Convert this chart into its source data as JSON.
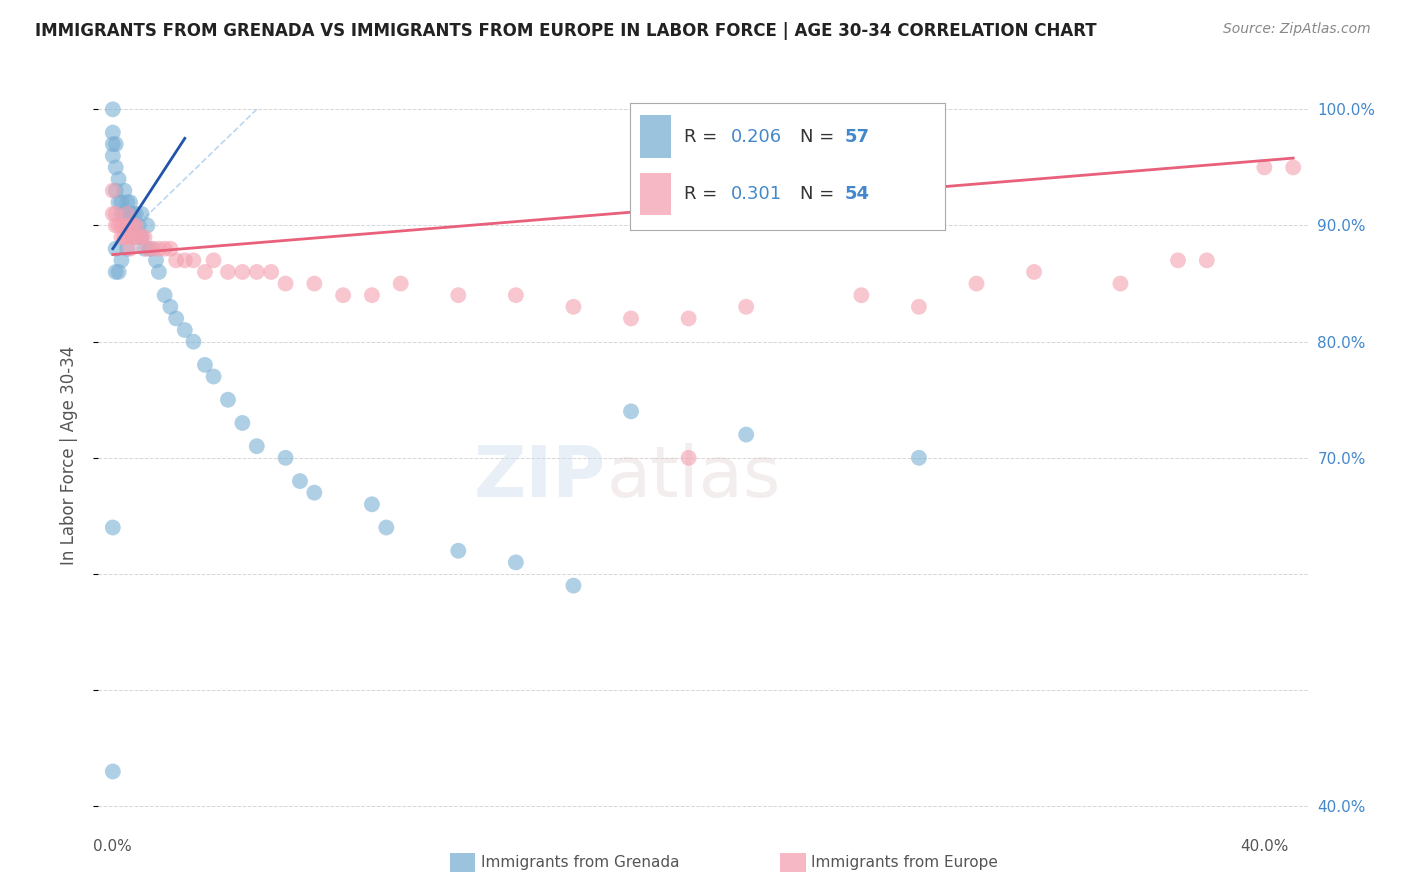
{
  "title": "IMMIGRANTS FROM GRENADA VS IMMIGRANTS FROM EUROPE IN LABOR FORCE | AGE 30-34 CORRELATION CHART",
  "source": "Source: ZipAtlas.com",
  "ylabel": "In Labor Force | Age 30-34",
  "legend_r1": "0.206",
  "legend_n1": "57",
  "legend_r2": "0.301",
  "legend_n2": "54",
  "blue_color": "#7BAFD4",
  "pink_color": "#F4A0B0",
  "blue_line_color": "#2255AA",
  "pink_line_color": "#E8607A",
  "blue_dashed_color": "#AACCEE",
  "axis_label_color": "#4488CC",
  "text_color": "#555555",
  "background_color": "#FFFFFF",
  "blue_scatter_x": [
    0.0,
    0.0,
    0.0,
    0.0,
    0.001,
    0.001,
    0.001,
    0.002,
    0.002,
    0.003,
    0.003,
    0.004,
    0.004,
    0.005,
    0.005,
    0.006,
    0.006,
    0.007,
    0.007,
    0.008,
    0.008,
    0.009,
    0.01,
    0.01,
    0.011,
    0.012,
    0.013,
    0.015,
    0.016,
    0.018,
    0.02,
    0.022,
    0.025,
    0.028,
    0.032,
    0.035,
    0.04,
    0.045,
    0.05,
    0.06,
    0.065,
    0.07,
    0.09,
    0.095,
    0.12,
    0.14,
    0.16,
    0.18,
    0.22,
    0.28,
    0.005,
    0.003,
    0.002,
    0.001,
    0.001,
    0.0,
    0.0
  ],
  "blue_scatter_y": [
    1.0,
    0.98,
    0.97,
    0.96,
    0.97,
    0.95,
    0.93,
    0.94,
    0.92,
    0.92,
    0.91,
    0.93,
    0.91,
    0.92,
    0.9,
    0.92,
    0.91,
    0.91,
    0.9,
    0.91,
    0.89,
    0.9,
    0.91,
    0.89,
    0.88,
    0.9,
    0.88,
    0.87,
    0.86,
    0.84,
    0.83,
    0.82,
    0.81,
    0.8,
    0.78,
    0.77,
    0.75,
    0.73,
    0.71,
    0.7,
    0.68,
    0.67,
    0.66,
    0.64,
    0.62,
    0.61,
    0.59,
    0.74,
    0.72,
    0.7,
    0.88,
    0.87,
    0.86,
    0.88,
    0.86,
    0.64,
    0.43
  ],
  "pink_scatter_x": [
    0.0,
    0.0,
    0.001,
    0.001,
    0.002,
    0.003,
    0.003,
    0.004,
    0.004,
    0.005,
    0.005,
    0.006,
    0.006,
    0.007,
    0.007,
    0.008,
    0.009,
    0.01,
    0.011,
    0.012,
    0.014,
    0.016,
    0.018,
    0.02,
    0.022,
    0.025,
    0.028,
    0.032,
    0.035,
    0.04,
    0.045,
    0.05,
    0.055,
    0.06,
    0.07,
    0.08,
    0.09,
    0.1,
    0.12,
    0.14,
    0.16,
    0.18,
    0.2,
    0.22,
    0.26,
    0.28,
    0.3,
    0.32,
    0.35,
    0.37,
    0.38,
    0.4,
    0.41,
    0.2
  ],
  "pink_scatter_y": [
    0.93,
    0.91,
    0.91,
    0.9,
    0.9,
    0.9,
    0.89,
    0.9,
    0.89,
    0.91,
    0.89,
    0.9,
    0.88,
    0.9,
    0.89,
    0.9,
    0.89,
    0.89,
    0.89,
    0.88,
    0.88,
    0.88,
    0.88,
    0.88,
    0.87,
    0.87,
    0.87,
    0.86,
    0.87,
    0.86,
    0.86,
    0.86,
    0.86,
    0.85,
    0.85,
    0.84,
    0.84,
    0.85,
    0.84,
    0.84,
    0.83,
    0.82,
    0.82,
    0.83,
    0.84,
    0.83,
    0.85,
    0.86,
    0.85,
    0.87,
    0.87,
    0.95,
    0.95,
    0.7
  ],
  "blue_line_x": [
    0.0,
    0.025
  ],
  "blue_line_y": [
    0.88,
    0.975
  ],
  "pink_line_x": [
    0.0,
    0.41
  ],
  "pink_line_y": [
    0.875,
    0.958
  ],
  "xlim": [
    -0.005,
    0.415
  ],
  "ylim": [
    0.38,
    1.025
  ],
  "xticks": [
    0.0,
    0.4
  ],
  "xticklabels": [
    "0.0%",
    "40.0%"
  ],
  "yticks_right": [
    1.0,
    0.9,
    0.8,
    0.7,
    0.4
  ],
  "ytick_right_labels": [
    "100.0%",
    "90.0%",
    "80.0%",
    "70.0%",
    "40.0%"
  ]
}
